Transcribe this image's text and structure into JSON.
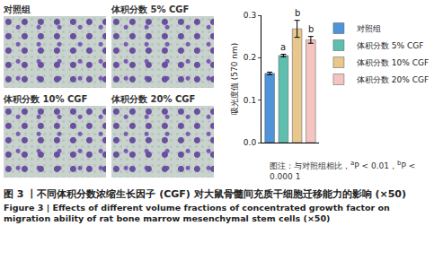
{
  "chart_data": {
    "type": "bar",
    "categories": [
      "对照组",
      "体积分数 5% CGF",
      "体积分数 10% CGF",
      "体积分数 20% CGF"
    ],
    "values": [
      0.163,
      0.205,
      0.268,
      0.242
    ],
    "errors": [
      0.003,
      0.003,
      0.02,
      0.008
    ],
    "colors": [
      "#4f93d8",
      "#5fbfae",
      "#e8c78e",
      "#f3c4c0"
    ],
    "y_label": "吸光度值 (570 nm)",
    "ylim": [
      0,
      0.3
    ],
    "yticks": [
      {
        "value": 0,
        "label": "0.0"
      },
      0.1,
      0.2,
      0.3
    ],
    "tick_labels": "y",
    "legend": "right",
    "annotations": [
      {
        "category": "体积分数 5% CGF",
        "text": "a"
      },
      {
        "category": "体积分数 10% CGF",
        "text": "b"
      },
      {
        "category": "体积分数 20% CGF",
        "text": "b"
      }
    ]
  },
  "image_panels": [
    "对照组",
    "体积分数 5% CGF",
    "体积分数 10% CGF",
    "体积分数 20% CGF"
  ],
  "note": {
    "prefix": "图注：与对照组相比，",
    "items": [
      {
        "mark": "a",
        "text": "P < 0.01，"
      },
      {
        "mark": "b",
        "text": "P < 0.000 1"
      }
    ]
  },
  "caption": {
    "zh": "图 3 丨不同体积分数浓缩生长因子 (CGF) 对大鼠骨髓间充质干细胞迁移能力的影响 (×50)",
    "en": "Figure 3 | Effects of different volume fractions of concentrated growth factor on migration ability of rat bone marrow mesenchymal stem cells (×50)"
  }
}
